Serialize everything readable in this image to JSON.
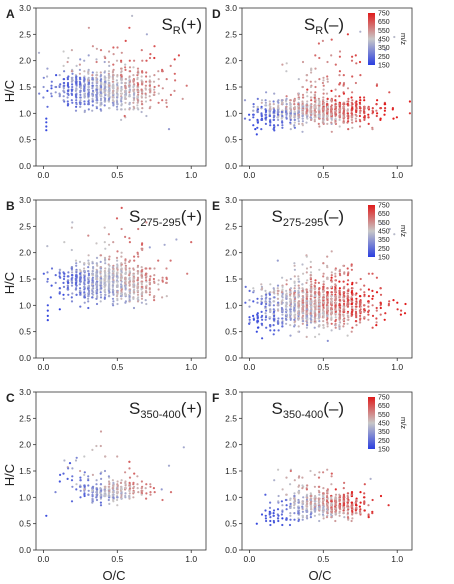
{
  "chart_data": {
    "type": "scatter",
    "x_axis": {
      "label": "O/C",
      "range": [
        -0.05,
        1.1
      ],
      "ticks": [
        0.0,
        0.5,
        1.0
      ],
      "tick_labels": [
        "0.0",
        "0.5",
        "1.0"
      ]
    },
    "y_axis": {
      "label": "H/C",
      "range": [
        0,
        3.0
      ],
      "ticks": [
        0.0,
        0.5,
        1.0,
        1.5,
        2.0,
        2.5,
        3.0
      ],
      "tick_labels": [
        "0.0",
        "0.5",
        "1.0",
        "1.5",
        "2.0",
        "2.5",
        "3.0"
      ]
    },
    "colorbar": {
      "label": "m/z",
      "ticks": [
        750,
        650,
        550,
        450,
        350,
        250,
        150
      ],
      "tick_labels": [
        "750",
        "650",
        "550",
        "450",
        "350",
        "250",
        "150"
      ],
      "range": [
        150,
        750
      ],
      "colors": {
        "low": "#2b3fe0",
        "mid": "#c8c8c8",
        "high": "#e01b1b"
      }
    },
    "panels": [
      {
        "letter": "A",
        "title_main": "S",
        "title_sub": "R",
        "title_sign": "(+)",
        "has_colorbar": false,
        "clusters": [
          {
            "n": 700,
            "cx": 0.45,
            "cy": 1.45,
            "sx": 0.17,
            "sy": 0.2,
            "mz": [
              150,
              600
            ]
          },
          {
            "n": 70,
            "cx": 0.45,
            "cy": 1.9,
            "sx": 0.22,
            "sy": 0.35,
            "mz": [
              300,
              700
            ]
          },
          {
            "n": 40,
            "cx": 0.25,
            "cy": 1.6,
            "sx": 0.08,
            "sy": 0.07,
            "mz": [
              150,
              320
            ]
          }
        ],
        "extra_points": [
          {
            "x": 0.02,
            "y": 0.9,
            "mz": 180
          },
          {
            "x": 0.02,
            "y": 0.83,
            "mz": 180
          },
          {
            "x": 0.02,
            "y": 0.75,
            "mz": 190
          },
          {
            "x": 0.02,
            "y": 0.68,
            "mz": 170
          },
          {
            "x": 0.85,
            "y": 0.7,
            "mz": 350
          },
          {
            "x": 0.55,
            "y": 0.95,
            "mz": 620
          },
          {
            "x": 0.6,
            "y": 2.85,
            "mz": 420
          },
          {
            "x": 0.7,
            "y": 2.5,
            "mz": 380
          }
        ]
      },
      {
        "letter": "D",
        "title_main": "S",
        "title_sub": "R",
        "title_sign": "(–)",
        "has_colorbar": true,
        "clusters": [
          {
            "n": 900,
            "cx": 0.45,
            "cy": 1.05,
            "sx": 0.2,
            "sy": 0.13,
            "mz": [
              150,
              750
            ]
          },
          {
            "n": 80,
            "cx": 0.55,
            "cy": 1.65,
            "sx": 0.15,
            "sy": 0.35,
            "mz": [
              350,
              700
            ]
          },
          {
            "n": 50,
            "cx": 0.15,
            "cy": 0.9,
            "sx": 0.07,
            "sy": 0.12,
            "mz": [
              150,
              300
            ]
          }
        ],
        "extra_points": [
          {
            "x": 0.88,
            "y": 2.35,
            "mz": 400
          },
          {
            "x": 0.98,
            "y": 2.45,
            "mz": 420
          },
          {
            "x": 0.92,
            "y": 2.2,
            "mz": 380
          },
          {
            "x": 0.75,
            "y": 2.55,
            "mz": 400
          },
          {
            "x": 0.05,
            "y": 0.6,
            "mz": 170
          },
          {
            "x": 0.04,
            "y": 0.7,
            "mz": 160
          }
        ]
      },
      {
        "letter": "B",
        "title_main": "S",
        "title_sub": "275-295",
        "title_sign": "(+)",
        "has_colorbar": false,
        "clusters": [
          {
            "n": 750,
            "cx": 0.45,
            "cy": 1.45,
            "sx": 0.16,
            "sy": 0.18,
            "mz": [
              150,
              600
            ]
          },
          {
            "n": 60,
            "cx": 0.45,
            "cy": 1.95,
            "sx": 0.2,
            "sy": 0.3,
            "mz": [
              300,
              650
            ]
          },
          {
            "n": 40,
            "cx": 0.2,
            "cy": 1.55,
            "sx": 0.07,
            "sy": 0.06,
            "mz": [
              150,
              320
            ]
          }
        ],
        "extra_points": [
          {
            "x": 0.03,
            "y": 1.0,
            "mz": 180
          },
          {
            "x": 0.03,
            "y": 0.9,
            "mz": 180
          },
          {
            "x": 0.03,
            "y": 0.8,
            "mz": 170
          },
          {
            "x": 0.03,
            "y": 0.72,
            "mz": 170
          },
          {
            "x": 0.9,
            "y": 2.25,
            "mz": 380
          },
          {
            "x": 0.82,
            "y": 2.15,
            "mz": 380
          },
          {
            "x": 0.72,
            "y": 2.1,
            "mz": 360
          },
          {
            "x": 0.05,
            "y": 1.15,
            "mz": 200
          }
        ]
      },
      {
        "letter": "E",
        "title_main": "S",
        "title_sub": "275-295",
        "title_sign": "(–)",
        "has_colorbar": true,
        "clusters": [
          {
            "n": 1200,
            "cx": 0.45,
            "cy": 1.0,
            "sx": 0.19,
            "sy": 0.2,
            "mz": [
              150,
              750
            ]
          },
          {
            "n": 80,
            "cx": 0.5,
            "cy": 1.55,
            "sx": 0.15,
            "sy": 0.25,
            "mz": [
              300,
              650
            ]
          },
          {
            "n": 40,
            "cx": 0.12,
            "cy": 0.75,
            "sx": 0.06,
            "sy": 0.15,
            "mz": [
              150,
              280
            ]
          }
        ],
        "extra_points": [
          {
            "x": 0.95,
            "y": 2.45,
            "mz": 400
          },
          {
            "x": 0.98,
            "y": 2.35,
            "mz": 420
          },
          {
            "x": 0.9,
            "y": 2.55,
            "mz": 400
          },
          {
            "x": 0.05,
            "y": 0.5,
            "mz": 170
          },
          {
            "x": 0.06,
            "y": 0.58,
            "mz": 170
          }
        ]
      },
      {
        "letter": "C",
        "title_main": "S",
        "title_sub": "350-400",
        "title_sign": "(+)",
        "has_colorbar": false,
        "clusters": [
          {
            "n": 250,
            "cx": 0.47,
            "cy": 1.1,
            "sx": 0.11,
            "sy": 0.1,
            "mz": [
              150,
              600
            ]
          },
          {
            "n": 40,
            "cx": 0.42,
            "cy": 1.5,
            "sx": 0.15,
            "sy": 0.25,
            "mz": [
              300,
              650
            ]
          },
          {
            "n": 25,
            "cx": 0.25,
            "cy": 1.3,
            "sx": 0.08,
            "sy": 0.15,
            "mz": [
              150,
              350
            ]
          }
        ],
        "extra_points": [
          {
            "x": 0.02,
            "y": 0.65,
            "mz": 180
          },
          {
            "x": 0.18,
            "y": 1.65,
            "mz": 200
          },
          {
            "x": 0.8,
            "y": 1.15,
            "mz": 350
          },
          {
            "x": 0.95,
            "y": 1.95,
            "mz": 380
          },
          {
            "x": 0.85,
            "y": 1.6,
            "mz": 380
          }
        ]
      },
      {
        "letter": "F",
        "title_main": "S",
        "title_sub": "350-400",
        "title_sign": "(–)",
        "has_colorbar": true,
        "clusters": [
          {
            "n": 550,
            "cx": 0.52,
            "cy": 0.85,
            "sx": 0.14,
            "sy": 0.12,
            "mz": [
              150,
              750
            ]
          },
          {
            "n": 50,
            "cx": 0.45,
            "cy": 1.2,
            "sx": 0.13,
            "sy": 0.15,
            "mz": [
              300,
              650
            ]
          },
          {
            "n": 30,
            "cx": 0.2,
            "cy": 0.6,
            "sx": 0.06,
            "sy": 0.08,
            "mz": [
              150,
              280
            ]
          }
        ],
        "extra_points": [
          {
            "x": 0.82,
            "y": 1.35,
            "mz": 400
          },
          {
            "x": 0.05,
            "y": 0.5,
            "mz": 170
          },
          {
            "x": 0.28,
            "y": 1.5,
            "mz": 600
          }
        ]
      }
    ]
  }
}
